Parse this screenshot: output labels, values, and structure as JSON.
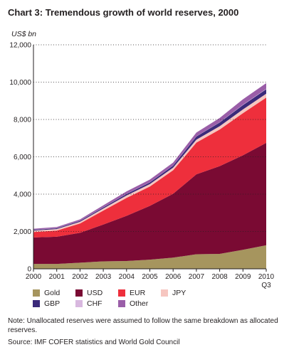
{
  "header": {
    "title": "Chart 3: Tremendous growth of world reserves, 2000",
    "unit": "US$ bn"
  },
  "chart_data": {
    "type": "area",
    "stacked": true,
    "x": [
      2000,
      2001,
      2002,
      2003,
      2004,
      2005,
      2006,
      2007,
      2008,
      2009,
      2010
    ],
    "x_tick_labels": [
      "2000",
      "2001",
      "2002",
      "2003",
      "2004",
      "2005",
      "2006",
      "2007",
      "2008",
      "2009",
      "2010"
    ],
    "x_last_sublabel": "Q3",
    "ylim": [
      0,
      12000
    ],
    "y_ticks": [
      0,
      2000,
      4000,
      6000,
      8000,
      10000,
      12000
    ],
    "y_tick_labels": [
      "0",
      "2,000",
      "4,000",
      "6,000",
      "8,000",
      "10,000",
      "12,000"
    ],
    "gridlines": "dotted horizontal",
    "series": [
      {
        "name": "Gold",
        "color": "#a6955e",
        "values": [
          260,
          260,
          330,
          400,
          420,
          490,
          600,
          780,
          800,
          1020,
          1260
        ]
      },
      {
        "name": "USD",
        "color": "#7a0a33",
        "values": [
          1420,
          1460,
          1600,
          1970,
          2420,
          2880,
          3420,
          4280,
          4700,
          5060,
          5490
        ]
      },
      {
        "name": "EUR",
        "color": "#ee2f3c",
        "values": [
          290,
          330,
          500,
          750,
          960,
          1040,
          1260,
          1700,
          1960,
          2260,
          2420
        ]
      },
      {
        "name": "JPY",
        "color": "#f6c6c0",
        "values": [
          80,
          80,
          90,
          110,
          130,
          130,
          140,
          160,
          180,
          200,
          210
        ]
      },
      {
        "name": "GBP",
        "color": "#3b2a7a",
        "values": [
          40,
          40,
          50,
          60,
          80,
          90,
          110,
          170,
          200,
          230,
          240
        ]
      },
      {
        "name": "CHF",
        "color": "#d8b8df",
        "values": [
          10,
          10,
          10,
          10,
          10,
          10,
          10,
          10,
          10,
          20,
          20
        ]
      },
      {
        "name": "Other",
        "color": "#9a5ea8",
        "values": [
          50,
          60,
          70,
          100,
          130,
          140,
          150,
          200,
          230,
          290,
          310
        ]
      }
    ]
  },
  "legend": {
    "items": [
      {
        "label": "Gold",
        "color": "#a6955e"
      },
      {
        "label": "USD",
        "color": "#7a0a33"
      },
      {
        "label": "EUR",
        "color": "#ee2f3c"
      },
      {
        "label": "JPY",
        "color": "#f6c6c0"
      },
      {
        "label": "GBP",
        "color": "#3b2a7a"
      },
      {
        "label": "CHF",
        "color": "#d8b8df"
      },
      {
        "label": "Other",
        "color": "#9a5ea8"
      }
    ]
  },
  "footer": {
    "note": "Note: Unallocated reserves were assumed to follow the same breakdown as allocated reserves.",
    "source": "Source: IMF COFER statistics and World Gold Council"
  }
}
